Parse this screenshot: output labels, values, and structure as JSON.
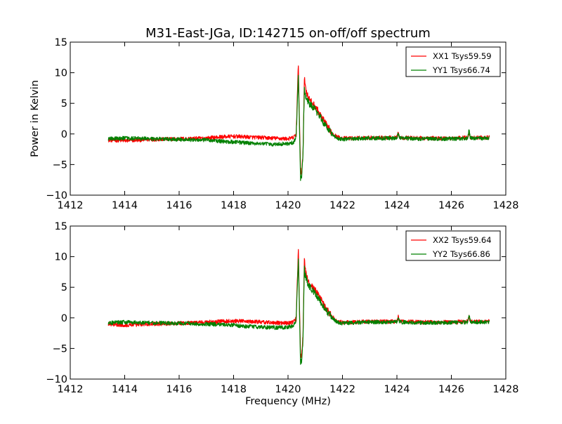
{
  "chart_data": [
    {
      "type": "line",
      "title": "M31-East-JGa, ID:142715 on-off/off spectrum",
      "xlabel": "",
      "ylabel": "Power in Kelvin",
      "xlim": [
        1412,
        1428
      ],
      "ylim": [
        -10,
        15
      ],
      "xticks": [
        "1412",
        "1414",
        "1416",
        "1418",
        "1420",
        "1422",
        "1424",
        "1426",
        "1428"
      ],
      "yticks": [
        "15",
        "10",
        "5",
        "0",
        "−5",
        "−10"
      ],
      "grid": false,
      "legend_position": "top-right",
      "series": [
        {
          "name": "XX1 Tsys59.59",
          "color": "#ff0000",
          "x": [
            1413.4,
            1414.0,
            1415.0,
            1416.0,
            1417.0,
            1417.5,
            1418.0,
            1418.5,
            1419.0,
            1419.5,
            1420.0,
            1420.2,
            1420.3,
            1420.38,
            1420.42,
            1420.46,
            1420.5,
            1420.55,
            1420.6,
            1420.65,
            1420.7,
            1420.8,
            1421.0,
            1421.2,
            1421.4,
            1421.6,
            1421.8,
            1422.0,
            1422.3,
            1423.0,
            1424.0,
            1424.05,
            1424.1,
            1425.0,
            1426.0,
            1426.6,
            1426.65,
            1426.7,
            1427.4
          ],
          "y": [
            -1.0,
            -1.1,
            -0.9,
            -0.8,
            -0.7,
            -0.5,
            -0.4,
            -0.5,
            -0.6,
            -0.7,
            -0.8,
            -0.6,
            0.0,
            11.5,
            2.0,
            -6.0,
            -6.5,
            -3.0,
            9.0,
            7.5,
            6.5,
            5.5,
            4.5,
            3.0,
            1.5,
            0.3,
            -0.5,
            -0.7,
            -0.7,
            -0.6,
            -0.6,
            0.3,
            -0.6,
            -0.7,
            -0.7,
            -0.6,
            0.3,
            -0.6,
            -0.6
          ]
        },
        {
          "name": "YY1 Tsys66.74",
          "color": "#008000",
          "x": [
            1413.4,
            1414.0,
            1415.0,
            1416.0,
            1417.0,
            1417.5,
            1418.0,
            1418.5,
            1419.0,
            1419.5,
            1420.0,
            1420.2,
            1420.3,
            1420.38,
            1420.42,
            1420.46,
            1420.5,
            1420.55,
            1420.6,
            1420.65,
            1420.7,
            1420.8,
            1421.0,
            1421.2,
            1421.4,
            1421.6,
            1421.8,
            1422.0,
            1422.3,
            1423.0,
            1424.0,
            1424.05,
            1424.1,
            1425.0,
            1426.0,
            1426.6,
            1426.65,
            1426.7,
            1427.4
          ],
          "y": [
            -0.8,
            -0.7,
            -0.8,
            -0.9,
            -1.0,
            -1.2,
            -1.3,
            -1.5,
            -1.6,
            -1.7,
            -1.6,
            -1.4,
            -0.5,
            10.0,
            1.0,
            -7.5,
            -7.0,
            -3.5,
            7.5,
            6.0,
            5.5,
            4.8,
            4.0,
            2.6,
            1.2,
            0.1,
            -0.7,
            -0.9,
            -0.8,
            -0.7,
            -0.7,
            0.2,
            -0.7,
            -0.8,
            -0.8,
            -0.7,
            0.6,
            -0.7,
            -0.7
          ]
        }
      ]
    },
    {
      "type": "line",
      "title": "",
      "xlabel": "Frequency (MHz)",
      "ylabel": "",
      "xlim": [
        1412,
        1428
      ],
      "ylim": [
        -10,
        15
      ],
      "xticks": [
        "1412",
        "1414",
        "1416",
        "1418",
        "1420",
        "1422",
        "1424",
        "1426",
        "1428"
      ],
      "yticks": [
        "15",
        "10",
        "5",
        "0",
        "−5",
        "−10"
      ],
      "grid": false,
      "legend_position": "top-right",
      "series": [
        {
          "name": "XX2 Tsys59.64",
          "color": "#ff0000",
          "x": [
            1413.4,
            1414.0,
            1415.0,
            1416.0,
            1417.0,
            1417.5,
            1418.0,
            1418.5,
            1419.0,
            1419.5,
            1420.0,
            1420.2,
            1420.3,
            1420.38,
            1420.42,
            1420.46,
            1420.5,
            1420.55,
            1420.6,
            1420.65,
            1420.7,
            1420.8,
            1421.0,
            1421.2,
            1421.4,
            1421.6,
            1421.8,
            1422.0,
            1422.3,
            1423.0,
            1424.0,
            1424.05,
            1424.1,
            1425.0,
            1426.0,
            1426.6,
            1426.65,
            1426.7,
            1427.4
          ],
          "y": [
            -1.0,
            -1.2,
            -1.0,
            -0.9,
            -0.7,
            -0.6,
            -0.5,
            -0.6,
            -0.7,
            -0.8,
            -0.9,
            -0.7,
            -0.1,
            11.5,
            2.0,
            -6.0,
            -6.5,
            -3.0,
            9.5,
            7.5,
            6.5,
            5.5,
            4.5,
            3.0,
            1.5,
            0.3,
            -0.5,
            -0.7,
            -0.7,
            -0.6,
            -0.6,
            0.2,
            -0.6,
            -0.7,
            -0.7,
            -0.6,
            0.3,
            -0.6,
            -0.6
          ]
        },
        {
          "name": "YY2 Tsys66.86",
          "color": "#008000",
          "x": [
            1413.4,
            1414.0,
            1415.0,
            1416.0,
            1417.0,
            1417.5,
            1418.0,
            1418.5,
            1419.0,
            1419.5,
            1420.0,
            1420.2,
            1420.3,
            1420.38,
            1420.42,
            1420.46,
            1420.5,
            1420.55,
            1420.6,
            1420.65,
            1420.7,
            1420.8,
            1421.0,
            1421.2,
            1421.4,
            1421.6,
            1421.8,
            1422.0,
            1422.3,
            1423.0,
            1424.0,
            1424.05,
            1424.1,
            1425.0,
            1426.0,
            1426.6,
            1426.65,
            1426.7,
            1427.4
          ],
          "y": [
            -0.8,
            -0.7,
            -0.8,
            -0.9,
            -1.0,
            -1.1,
            -1.2,
            -1.4,
            -1.5,
            -1.6,
            -1.5,
            -1.3,
            -0.4,
            10.0,
            1.0,
            -7.5,
            -7.0,
            -3.5,
            8.0,
            6.5,
            5.8,
            5.0,
            4.0,
            2.6,
            1.2,
            0.1,
            -0.7,
            -0.9,
            -0.8,
            -0.7,
            -0.7,
            0.2,
            -0.7,
            -0.8,
            -0.8,
            -0.7,
            0.6,
            -0.7,
            -0.7
          ]
        }
      ]
    }
  ]
}
